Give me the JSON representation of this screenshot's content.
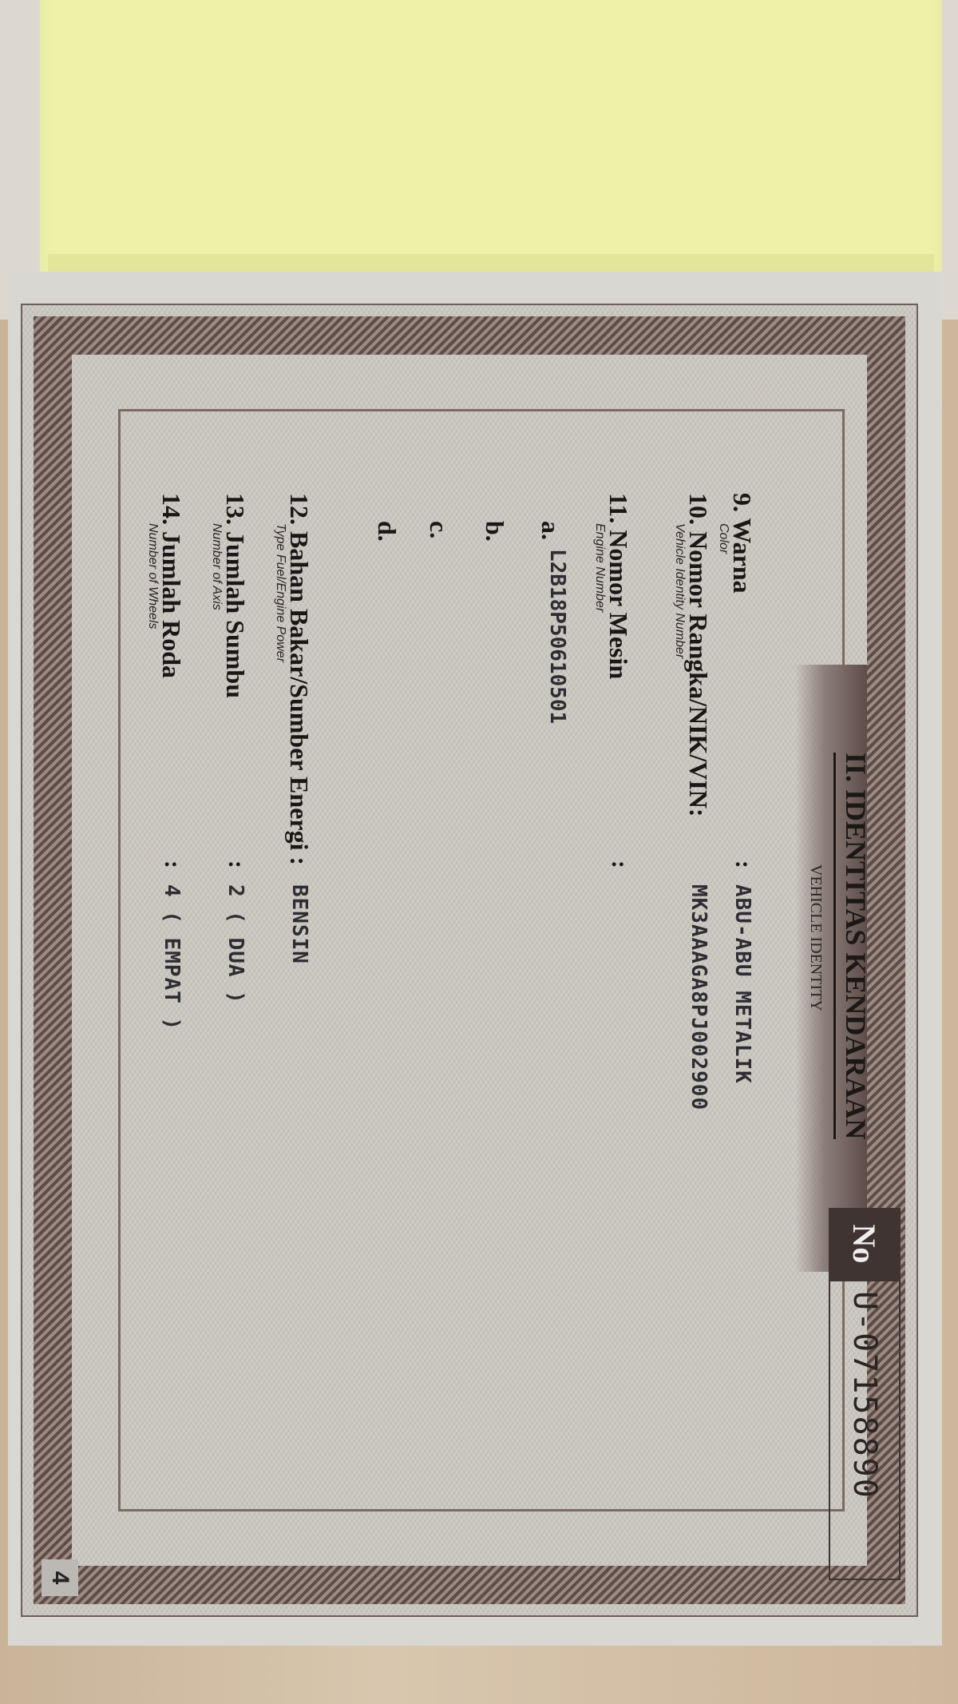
{
  "document": {
    "heading": "II. IDENTITAS KENDARAAN",
    "subheading": "VEHICLE IDENTITY",
    "no_label": "No",
    "number": "U-07158890",
    "page_number": "4",
    "fields": [
      {
        "label": "9.  Warna",
        "sub": "Color",
        "colon": ":",
        "value": "ABU-ABU METALIK"
      },
      {
        "label": "10. Nomor Rangka/NIK/VIN:",
        "sub": "Vehicle Identity Number",
        "colon": "",
        "value": "MK3AAAGA8PJ002900"
      },
      {
        "label": "11. Nomor Mesin",
        "sub": "Engine Number",
        "colon": ":",
        "value": "L2B18P50610501"
      },
      {
        "label": "a.",
        "sub": "",
        "colon": "",
        "value": ""
      },
      {
        "label": "b.",
        "sub": "",
        "colon": "",
        "value": ""
      },
      {
        "label": "c.",
        "sub": "",
        "colon": "",
        "value": ""
      },
      {
        "label": "d.",
        "sub": "",
        "colon": "",
        "value": ""
      },
      {
        "label": "12. Bahan Bakar/Sumber Energi :",
        "sub": "Type Fuel/Engine Power",
        "colon": "",
        "value": "BENSIN"
      },
      {
        "label": "13. Jumlah Sumbu",
        "sub": "Number of Axis",
        "colon": ":",
        "value": "2 ( DUA )"
      },
      {
        "label": "14. Jumlah Roda",
        "sub": "Number of Wheels",
        "colon": ":",
        "value": "4 ( EMPAT )"
      }
    ]
  },
  "colors": {
    "page_yellow": "#eef1a8",
    "border_brown": "#6f5d57",
    "paper": "#cfccc6"
  }
}
